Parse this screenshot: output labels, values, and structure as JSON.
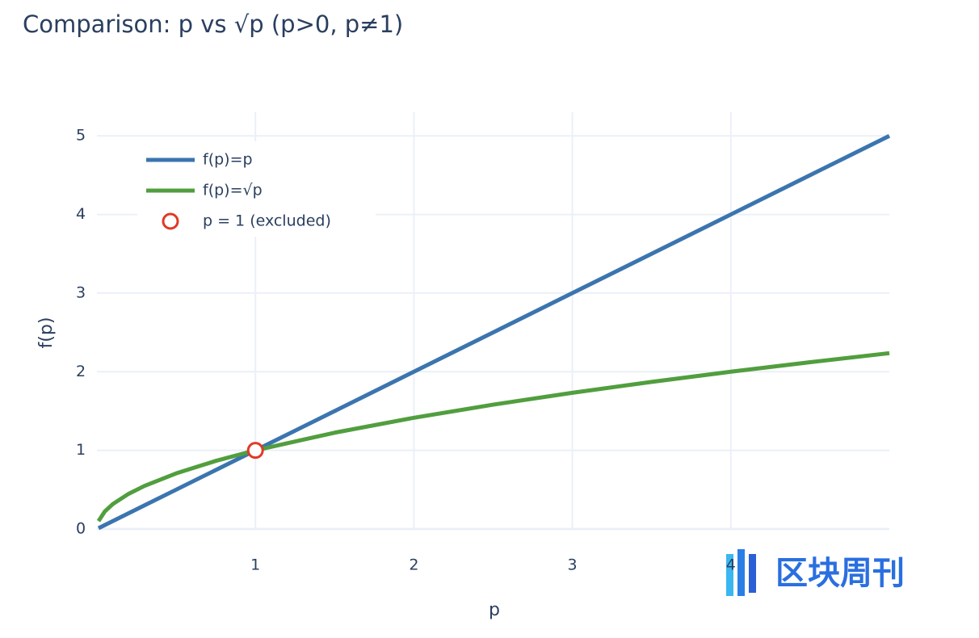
{
  "chart_data": {
    "type": "line",
    "title": "Comparison: p vs √p  (p>0, p≠1)",
    "x_label": "p",
    "y_label": "f(p)",
    "x": [
      0.01,
      0.05,
      0.1,
      0.2,
      0.3,
      0.5,
      0.75,
      1,
      1.5,
      2,
      2.5,
      3,
      3.5,
      4,
      4.5,
      5
    ],
    "series": [
      {
        "name": "f(p)=p",
        "color": "#3b75af",
        "mode": "lines",
        "values": [
          0.01,
          0.05,
          0.1,
          0.2,
          0.3,
          0.5,
          0.75,
          1,
          1.5,
          2,
          2.5,
          3,
          3.5,
          4,
          4.5,
          5
        ]
      },
      {
        "name": "f(p)=√p",
        "color": "#519e3e",
        "mode": "lines",
        "values": [
          0.1,
          0.2236,
          0.3162,
          0.4472,
          0.5477,
          0.7071,
          0.866,
          1,
          1.2247,
          1.4142,
          1.5811,
          1.7321,
          1.8708,
          2,
          2.1213,
          2.2361
        ]
      },
      {
        "name": "p = 1 (excluded)",
        "color": "#e03a26",
        "mode": "markers",
        "x": [
          1
        ],
        "values": [
          1
        ]
      }
    ],
    "xlim": [
      0,
      5
    ],
    "ylim": [
      0,
      5.3
    ],
    "xticks": [
      1,
      2,
      3,
      4
    ],
    "yticks": [
      0,
      1,
      2,
      3,
      4,
      5
    ],
    "grid": true,
    "legend": "top-left",
    "watermark": "区块周刊"
  }
}
